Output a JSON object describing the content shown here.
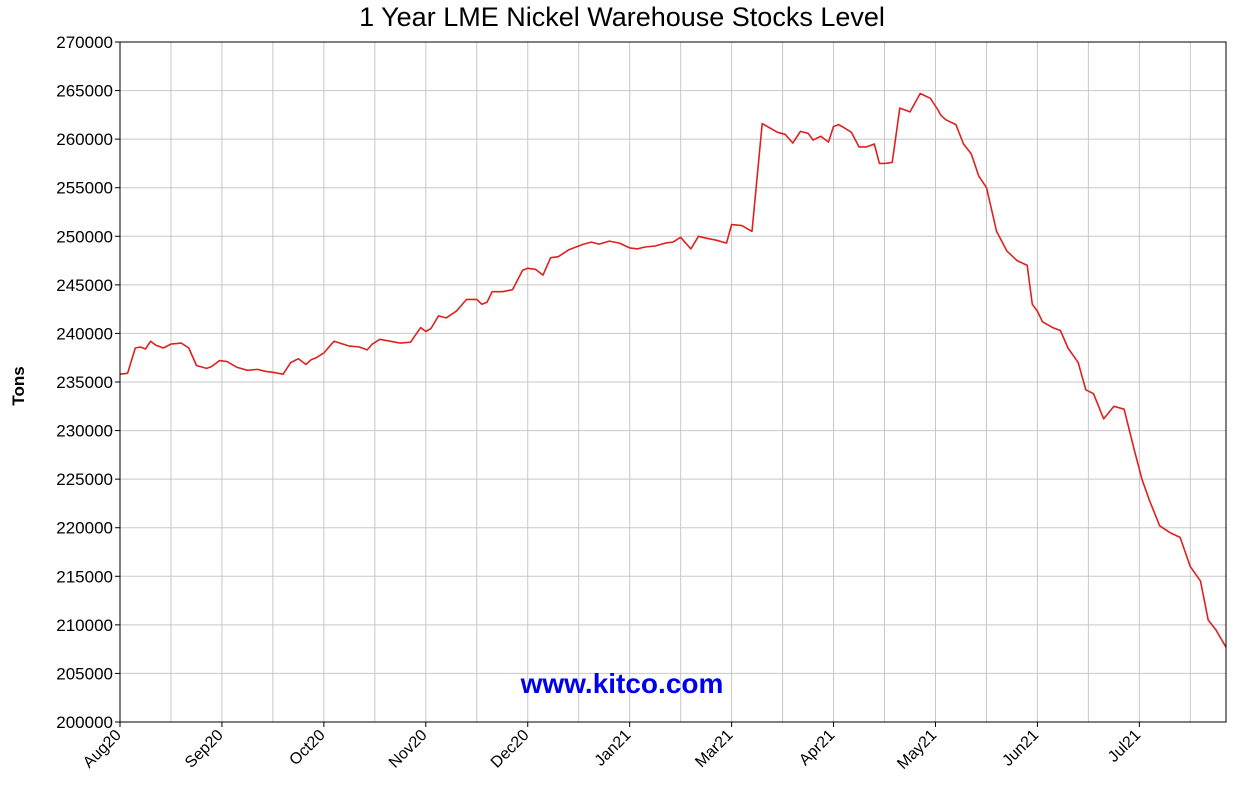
{
  "chart_data": {
    "type": "line",
    "title": "1 Year LME Nickel Warehouse Stocks Level",
    "xlabel": "",
    "ylabel": "Tons",
    "ylim": [
      200000,
      270000
    ],
    "y_ticks": [
      200000,
      205000,
      210000,
      215000,
      220000,
      225000,
      230000,
      235000,
      240000,
      245000,
      250000,
      255000,
      260000,
      265000,
      270000
    ],
    "x_ticks": [
      "Aug20",
      "Sep20",
      "Oct20",
      "Nov20",
      "Dec20",
      "Jan21",
      "Mar21",
      "Apr21",
      "May21",
      "Jun21",
      "Jul21"
    ],
    "x_range": [
      0,
      21.7
    ],
    "grid": true,
    "legend": "none",
    "watermark": "www.kitco.com",
    "colors": {
      "line": "#e02020",
      "watermark": "#0000ee",
      "grid": "#c8c8c8"
    },
    "series": [
      {
        "x": [
          0,
          0.15,
          0.3,
          0.4,
          0.5,
          0.6,
          0.7,
          0.85,
          1.0,
          1.2,
          1.35,
          1.5,
          1.7,
          1.8,
          1.95,
          2.1,
          2.3,
          2.5,
          2.7,
          2.85,
          3.0,
          3.2,
          3.35,
          3.5,
          3.65,
          3.75,
          3.85,
          4.0,
          4.2,
          4.5,
          4.7,
          4.85,
          4.95,
          5.1,
          5.3,
          5.5,
          5.7,
          5.9,
          6.0,
          6.1,
          6.25,
          6.4,
          6.6,
          6.8,
          7.0,
          7.1,
          7.2,
          7.3,
          7.5,
          7.7,
          7.9,
          8.0,
          8.15,
          8.3,
          8.45,
          8.6,
          8.8,
          9.0,
          9.1,
          9.25,
          9.4,
          9.6,
          9.8,
          10.0,
          10.15,
          10.3,
          10.5,
          10.7,
          10.85,
          11.0,
          11.2,
          11.35,
          11.5,
          11.7,
          11.9,
          12.0,
          12.2,
          12.4,
          12.6,
          12.9,
          13.05,
          13.2,
          13.35,
          13.5,
          13.6,
          13.75,
          13.9,
          14.0,
          14.1,
          14.2,
          14.35,
          14.5,
          14.65,
          14.8,
          14.9,
          15.0,
          15.15,
          15.3,
          15.5,
          15.7,
          15.9,
          16.05,
          16.1,
          16.2,
          16.4,
          16.55,
          16.7,
          16.85,
          17.0,
          17.2,
          17.4,
          17.6,
          17.8,
          17.9,
          18.0,
          18.1,
          18.3,
          18.45,
          18.6,
          18.8,
          18.95,
          19.1,
          19.3,
          19.5,
          19.7,
          19.9,
          20.05,
          20.2,
          20.4,
          20.6,
          20.8,
          21.0,
          21.2,
          21.35,
          21.5,
          21.7
        ],
        "values": [
          235800,
          235900,
          238500,
          238600,
          238400,
          239200,
          238800,
          238500,
          238900,
          239000,
          238500,
          236700,
          236400,
          236600,
          237200,
          237100,
          236500,
          236200,
          236300,
          236100,
          236000,
          235800,
          237000,
          237400,
          236800,
          237300,
          237500,
          238000,
          239200,
          238700,
          238600,
          238300,
          238900,
          239400,
          239200,
          239000,
          239100,
          240600,
          240200,
          240500,
          241800,
          241600,
          242300,
          243500,
          243500,
          243000,
          243200,
          244300,
          244300,
          244500,
          246500,
          246700,
          246600,
          246000,
          247800,
          247900,
          248600,
          249000,
          249200,
          249400,
          249200,
          249500,
          249300,
          248800,
          248700,
          248900,
          249000,
          249300,
          249400,
          249900,
          248700,
          250000,
          249800,
          249600,
          249300,
          251200,
          251100,
          250500,
          261600,
          260700,
          260500,
          259600,
          260800,
          260600,
          259900,
          260300,
          259700,
          261300,
          261500,
          261200,
          260700,
          259200,
          259200,
          259500,
          257500,
          257500,
          257600,
          263200,
          262800,
          264700,
          264200,
          263000,
          262500,
          262000,
          261500,
          259500,
          258500,
          256200,
          255000,
          250500,
          248500,
          247500,
          247000,
          243000,
          242300,
          241200,
          240600,
          240300,
          238500,
          237000,
          234200,
          233800,
          231200,
          232500,
          232200,
          228000,
          225000,
          222800,
          220200,
          219500,
          219000,
          216000,
          214500,
          210500,
          209500,
          207700
        ]
      }
    ]
  }
}
